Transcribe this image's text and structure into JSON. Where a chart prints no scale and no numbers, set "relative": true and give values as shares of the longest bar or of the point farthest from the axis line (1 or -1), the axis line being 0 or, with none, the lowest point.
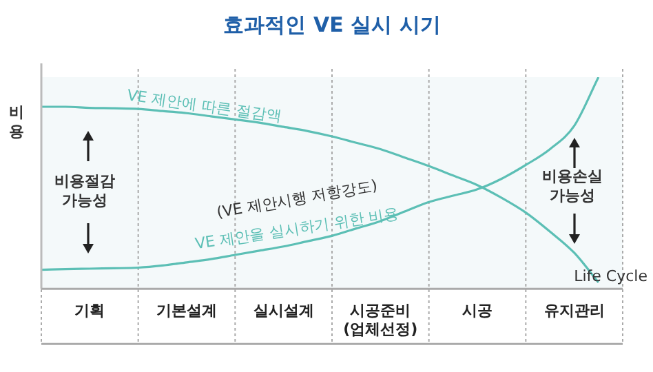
{
  "chart_data": {
    "type": "line",
    "title": "효과적인 VE 실시 시기",
    "xlabel": "Life Cycle",
    "ylabel": "비용",
    "relative": true,
    "legend": false,
    "grid": "x",
    "marker": "none",
    "line_style": "solid",
    "categories": [
      null,
      null,
      "기획",
      null,
      null,
      null,
      "기본설계",
      null,
      null,
      null,
      "실시설계",
      null,
      null,
      null,
      "시공준비\n(업체선정)",
      null,
      null,
      null,
      "시공",
      null,
      null,
      null,
      "유지관리",
      null,
      null
    ],
    "series": [
      {
        "name": "VE 제안에 따른 절감액",
        "color": "#5cbfb5",
        "values": [
          0.86,
          0.86,
          0.855,
          0.853,
          0.85,
          0.84,
          0.83,
          0.815,
          0.8,
          0.785,
          0.765,
          0.745,
          0.72,
          0.69,
          0.66,
          0.62,
          0.58,
          0.535,
          0.49,
          0.43,
          0.36,
          0.27,
          0.17,
          0.03,
          null
        ]
      },
      {
        "name": "VE 제안을 실시하기 위한 비용",
        "color": "#5cbfb5",
        "values": [
          0.09,
          0.093,
          0.095,
          0.097,
          0.1,
          0.11,
          0.125,
          0.14,
          0.16,
          0.18,
          0.2,
          0.225,
          0.25,
          0.285,
          0.32,
          0.365,
          0.41,
          0.44,
          0.47,
          0.52,
          0.585,
          0.66,
          0.77,
          1,
          null
        ]
      }
    ],
    "annotations": [
      "비용절감 가능성",
      "비용손실 가능성",
      "(VE 제안시행 저항강도)"
    ]
  }
}
